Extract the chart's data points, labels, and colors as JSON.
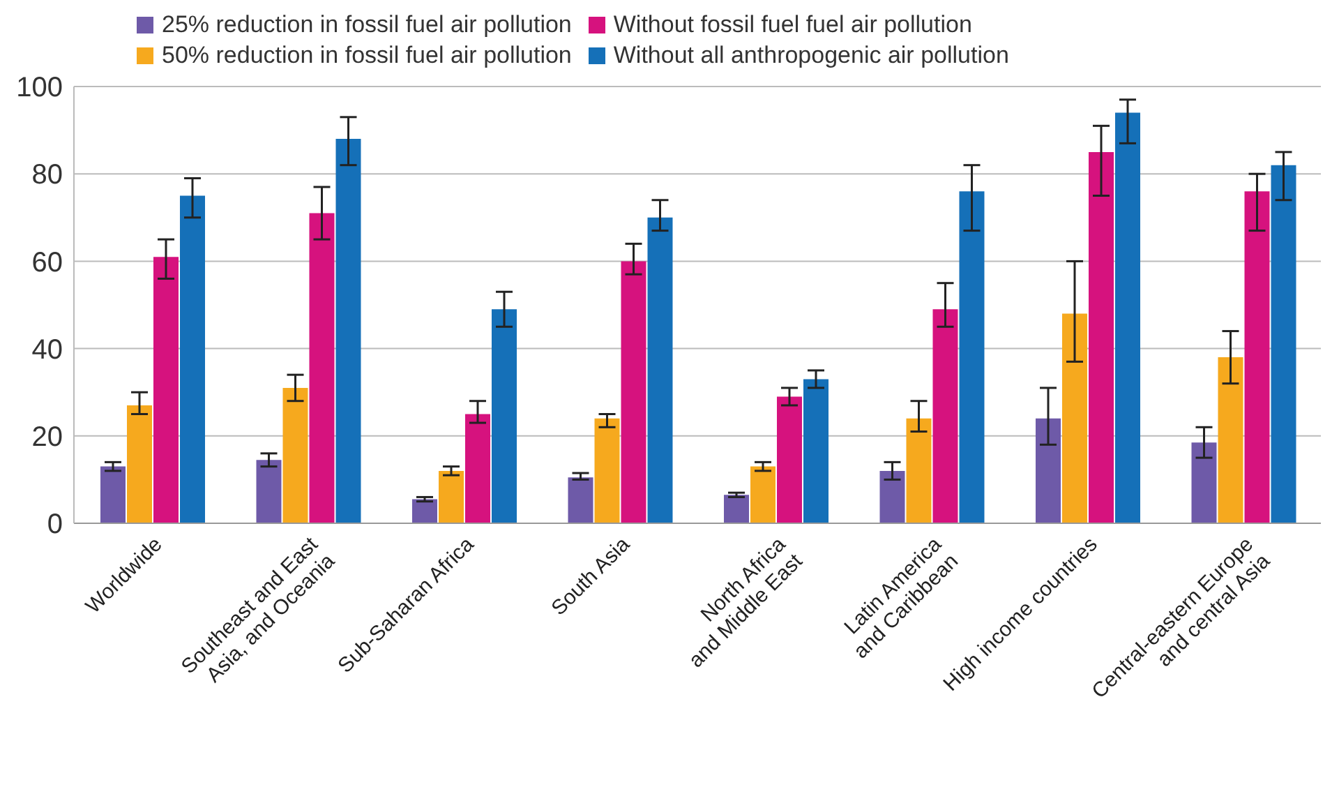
{
  "chart_data": {
    "type": "bar",
    "categories": [
      "Worldwide",
      "Southeast and East\nAsia, and Oceania",
      "Sub-Saharan Africa",
      "South Asia",
      "North Africa\nand Middle East",
      "Latin America\nand Caribbean",
      "High income countries",
      "Central-eastern Europe\nand central Asia"
    ],
    "series": [
      {
        "name": "25% reduction in fossil fuel air pollution",
        "color": "#6e5aa8",
        "values": [
          13,
          14.5,
          5.5,
          10.5,
          6.5,
          12,
          24,
          18.5
        ],
        "errors": [
          [
            12,
            14
          ],
          [
            13,
            16
          ],
          [
            5,
            6
          ],
          [
            10,
            11.5
          ],
          [
            6,
            7
          ],
          [
            10,
            14
          ],
          [
            18,
            31
          ],
          [
            15,
            22
          ]
        ]
      },
      {
        "name": "50% reduction in fossil fuel air pollution",
        "color": "#f6a91e",
        "values": [
          27,
          31,
          12,
          24,
          13,
          24,
          48,
          38
        ],
        "errors": [
          [
            25,
            30
          ],
          [
            28,
            34
          ],
          [
            11,
            13
          ],
          [
            22,
            25
          ],
          [
            12,
            14
          ],
          [
            21,
            28
          ],
          [
            37,
            60
          ],
          [
            32,
            44
          ]
        ]
      },
      {
        "name": "Without fossil fuel fuel air pollution",
        "color": "#d6127e",
        "values": [
          61,
          71,
          25,
          60,
          29,
          49,
          85,
          76
        ],
        "errors": [
          [
            56,
            65
          ],
          [
            65,
            77
          ],
          [
            23,
            28
          ],
          [
            57,
            64
          ],
          [
            27,
            31
          ],
          [
            45,
            55
          ],
          [
            75,
            91
          ],
          [
            67,
            80
          ]
        ]
      },
      {
        "name": "Without all anthropogenic air pollution",
        "color": "#1570b8",
        "values": [
          75,
          88,
          49,
          70,
          33,
          76,
          94,
          82
        ],
        "errors": [
          [
            70,
            79
          ],
          [
            82,
            93
          ],
          [
            45,
            53
          ],
          [
            67,
            74
          ],
          [
            31,
            35
          ],
          [
            67,
            82
          ],
          [
            87,
            97
          ],
          [
            74,
            85
          ]
        ]
      }
    ],
    "ylim": [
      0,
      100
    ],
    "yticks": [
      0,
      20,
      40,
      60,
      80,
      100
    ],
    "grid": "y",
    "legend": "top"
  }
}
